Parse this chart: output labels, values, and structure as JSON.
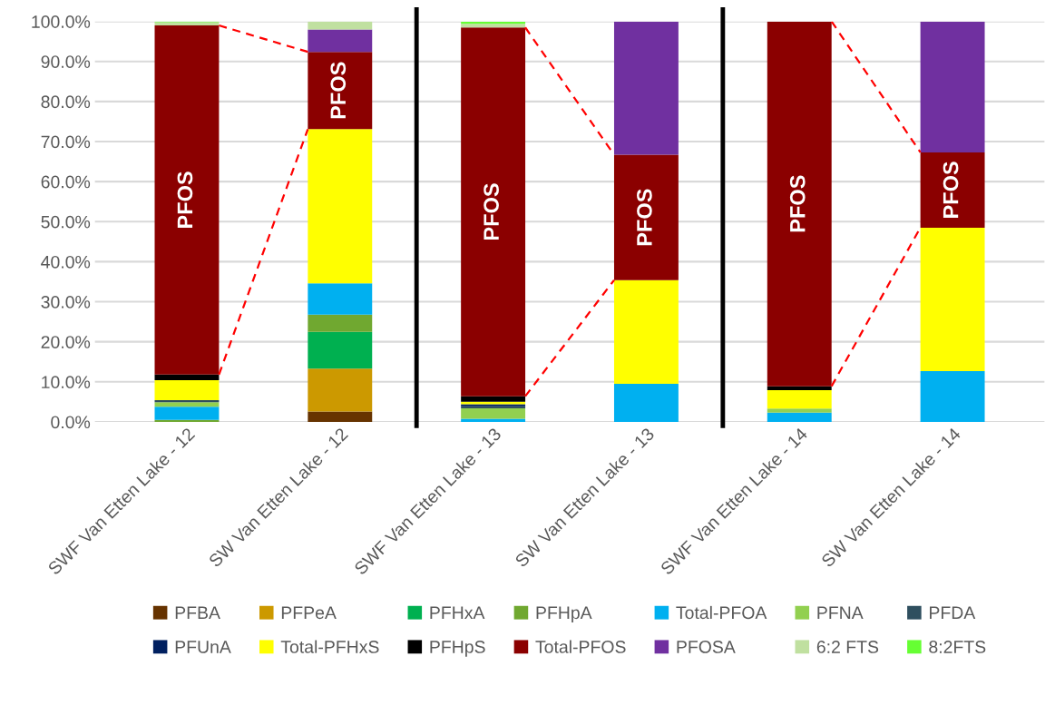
{
  "chart_data": {
    "type": "bar",
    "stacked": true,
    "grid": "y",
    "legend": "bottom",
    "categories": [
      "SWF Van Etten Lake - 12",
      "SW Van Etten Lake - 12",
      "SWF Van Etten Lake - 13",
      "SW Van Etten Lake - 13",
      "SWF Van Etten Lake - 14",
      "SW Van Etten Lake - 14"
    ],
    "ylim": [
      0,
      100
    ],
    "yticks": [
      {
        "value": 0,
        "label": "0.0%"
      },
      {
        "value": 10,
        "label": "10.0%"
      },
      {
        "value": 20,
        "label": "20.0%"
      },
      {
        "value": 30,
        "label": "30.0%"
      },
      {
        "value": 40,
        "label": "40.0%"
      },
      {
        "value": 50,
        "label": "50.0%"
      },
      {
        "value": 60,
        "label": "60.0%"
      },
      {
        "value": 70,
        "label": "70.0%"
      },
      {
        "value": 80,
        "label": "80.0%"
      },
      {
        "value": 90,
        "label": "90.0%"
      },
      {
        "value": 100,
        "label": "100.0%"
      }
    ],
    "series": [
      {
        "name": "PFBA",
        "color": "#663300",
        "values": [
          null,
          2.6,
          null,
          null,
          null,
          null
        ]
      },
      {
        "name": "PFPeA",
        "color": "#cc9900",
        "values": [
          null,
          10.7,
          null,
          null,
          null,
          null
        ]
      },
      {
        "name": "PFHxA",
        "color": "#00b050",
        "values": [
          null,
          9.2,
          null,
          null,
          null,
          null
        ]
      },
      {
        "name": "PFHpA",
        "color": "#70a830",
        "values": [
          0.5,
          4.3,
          null,
          null,
          null,
          null
        ]
      },
      {
        "name": "Total-PFOA",
        "color": "#00b0f0",
        "values": [
          3.3,
          7.8,
          0.8,
          9.5,
          2.3,
          12.7
        ]
      },
      {
        "name": "PFNA",
        "color": "#92d050",
        "values": [
          1.1,
          null,
          2.6,
          null,
          1.0,
          null
        ]
      },
      {
        "name": "PFDA",
        "color": "#2f4f5f",
        "values": [
          0.5,
          null,
          0.5,
          null,
          null,
          null
        ]
      },
      {
        "name": "PFUnA",
        "color": "#002060",
        "values": [
          null,
          null,
          0.5,
          null,
          null,
          null
        ]
      },
      {
        "name": "Total-PFHxS",
        "color": "#ffff00",
        "values": [
          5.0,
          38.5,
          0.6,
          25.9,
          4.6,
          35.8
        ]
      },
      {
        "name": "PFHpS",
        "color": "#000000",
        "values": [
          1.4,
          null,
          1.4,
          null,
          1.0,
          null
        ]
      },
      {
        "name": "Total-PFOS",
        "color": "#8b0000",
        "values": [
          87.2,
          19.3,
          92.1,
          31.3,
          91.1,
          18.8
        ],
        "value_labels": [
          "PFOS",
          "PFOS",
          "PFOS",
          "PFOS",
          "PFOS",
          "PFOS"
        ]
      },
      {
        "name": "PFOSA",
        "color": "#7030a0",
        "values": [
          null,
          5.6,
          null,
          33.3,
          null,
          32.7
        ]
      },
      {
        "name": "6:2 FTS",
        "color": "#c0e0a0",
        "values": [
          0.8,
          2.0,
          0.9,
          null,
          null,
          null
        ]
      },
      {
        "name": "8:2FTS",
        "color": "#66ff33",
        "values": [
          0.2,
          null,
          0.5,
          null,
          null,
          null
        ]
      }
    ]
  }
}
